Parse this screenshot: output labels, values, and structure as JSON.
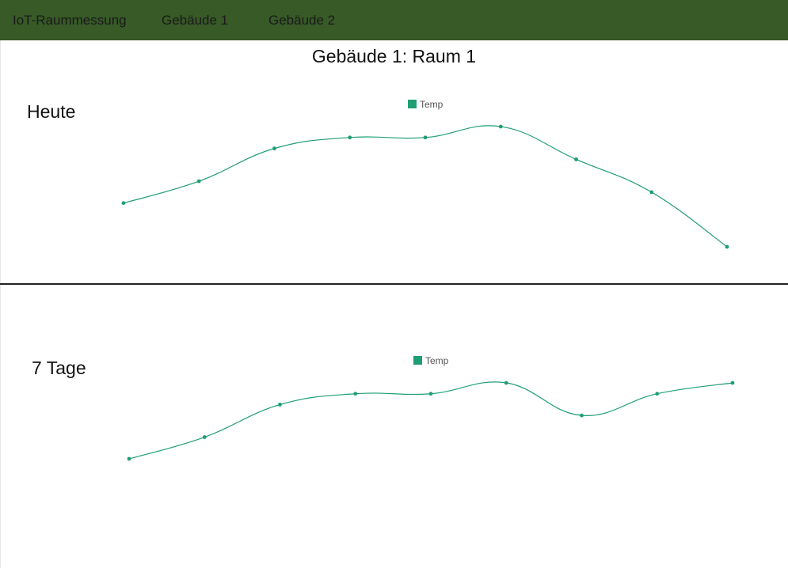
{
  "nav": {
    "brand": "IoT-Raummessung",
    "links": [
      "Gebäude 1",
      "Gebäude 2"
    ]
  },
  "page_title": "Gebäude 1: Raum 1",
  "sections": [
    {
      "title": "Heute"
    },
    {
      "title": "7 Tage"
    }
  ],
  "colors": {
    "navbar": "#375a26",
    "series": "#1f9e72"
  },
  "chart_data": [
    {
      "type": "line",
      "title": "",
      "xlabel": "",
      "ylabel": "",
      "grid": false,
      "legend": "top-center",
      "series": [
        {
          "name": "Temp",
          "values": [
            21.0,
            21.7,
            22.75,
            23.1,
            23.1,
            23.45,
            22.4,
            21.35,
            19.6
          ]
        }
      ],
      "ylim": [
        19.0,
        24.0
      ]
    },
    {
      "type": "line",
      "title": "",
      "xlabel": "",
      "ylabel": "",
      "grid": false,
      "legend": "top-center",
      "series": [
        {
          "name": "Temp",
          "values": [
            21.0,
            21.7,
            22.75,
            23.1,
            23.1,
            23.45,
            22.4,
            23.1,
            23.45
          ]
        }
      ],
      "ylim": [
        19.0,
        24.0
      ]
    }
  ]
}
